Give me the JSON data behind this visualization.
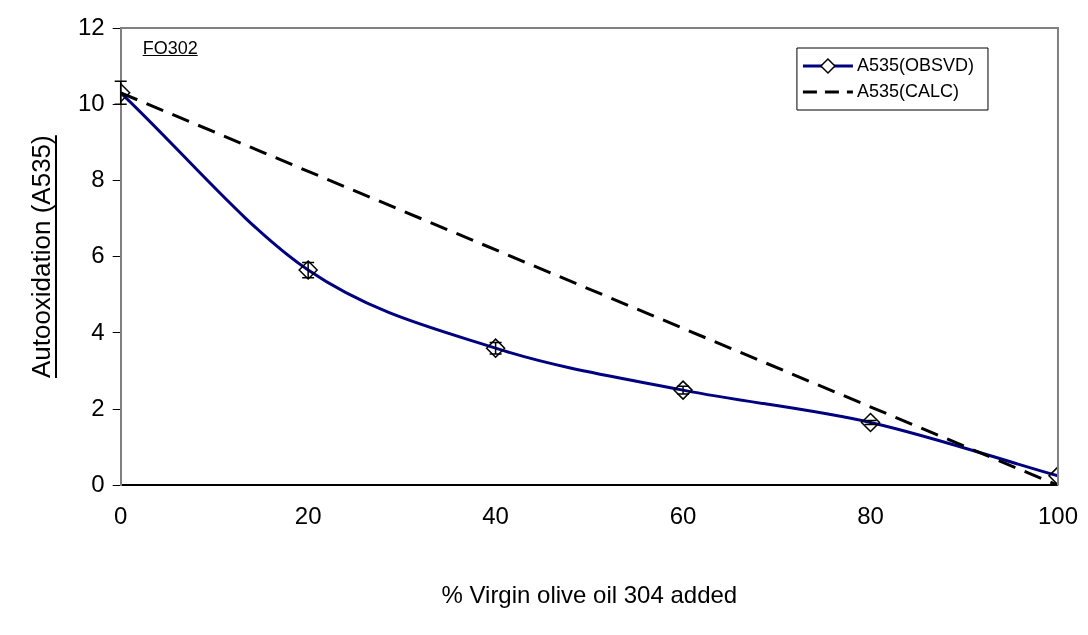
{
  "chart_data": {
    "type": "line",
    "xlabel": "% Virgin olive oil 304 added",
    "ylabel": "Autooxidation (A535)",
    "annotations": [
      "FO302"
    ],
    "x": [
      0,
      20,
      40,
      60,
      80,
      100
    ],
    "series": [
      {
        "name": "A535(OBSVD)",
        "color": "#000080",
        "values": [
          10.3,
          5.65,
          3.6,
          2.5,
          1.65,
          0.25
        ],
        "errors": [
          0.3,
          0.2,
          0.15,
          0.1,
          0.05,
          null
        ],
        "marker": "diamond",
        "line_style": "solid"
      },
      {
        "name": "A535(CALC)",
        "color": "#000000",
        "x": [
          0,
          100
        ],
        "values": [
          10.3,
          0
        ],
        "line_style": "dashed"
      }
    ],
    "xlim": [
      0,
      100
    ],
    "xticks": [
      0,
      20,
      40,
      60,
      80,
      100
    ],
    "ylim": [
      0,
      12
    ],
    "yticks": [
      0,
      2,
      4,
      6,
      8,
      10,
      12
    ],
    "grid": false,
    "legend": "top right"
  }
}
